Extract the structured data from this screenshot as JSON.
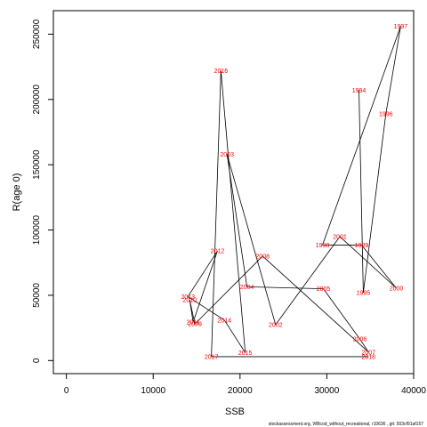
{
  "chart_data": {
    "type": "line",
    "title": "",
    "xlabel": "SSB",
    "ylabel": "R(age 0)",
    "xlim": [
      -1500,
      40000
    ],
    "ylim": [
      -10000,
      268000
    ],
    "xticks": [
      0,
      10000,
      20000,
      30000,
      40000
    ],
    "yticks": [
      0,
      50000,
      100000,
      150000,
      200000,
      250000
    ],
    "points": [
      {
        "year": "1997",
        "x": 38500,
        "y": 256000
      },
      {
        "year": "1998",
        "x": 29500,
        "y": 88500
      },
      {
        "year": "1999",
        "x": 34000,
        "y": 88500
      },
      {
        "year": "2000",
        "x": 38000,
        "y": 55500
      },
      {
        "year": "2001",
        "x": 31500,
        "y": 95000
      },
      {
        "year": "1995",
        "x": 34200,
        "y": 52000
      },
      {
        "year": "1996",
        "x": 36800,
        "y": 189000
      },
      {
        "year": "1994",
        "x": 33700,
        "y": 207000
      },
      {
        "year": "2002",
        "x": 24100,
        "y": 27500
      },
      {
        "year": "2003",
        "x": 18500,
        "y": 158000
      },
      {
        "year": "2004",
        "x": 20800,
        "y": 56500
      },
      {
        "year": "2005",
        "x": 29600,
        "y": 55000
      },
      {
        "year": "2006",
        "x": 33800,
        "y": 16500
      },
      {
        "year": "2007",
        "x": 34800,
        "y": 6500
      },
      {
        "year": "2008",
        "x": 22600,
        "y": 80000
      },
      {
        "year": "2009",
        "x": 14800,
        "y": 28000
      },
      {
        "year": "2010",
        "x": 14200,
        "y": 46500
      },
      {
        "year": "2011",
        "x": 14600,
        "y": 29500
      },
      {
        "year": "2012",
        "x": 17400,
        "y": 84000
      },
      {
        "year": "2013",
        "x": 14000,
        "y": 49000
      },
      {
        "year": "2014",
        "x": 18200,
        "y": 31000
      },
      {
        "year": "2015",
        "x": 20600,
        "y": 6000
      },
      {
        "year": "2016",
        "x": 17800,
        "y": 222000
      },
      {
        "year": "2017",
        "x": 16700,
        "y": 3000
      },
      {
        "year": "2018",
        "x": 34800,
        "y": 3000
      }
    ],
    "path_order": [
      "1994",
      "1995",
      "1996",
      "1997",
      "1998",
      "1999",
      "2000",
      "2001",
      "2002",
      "2003",
      "2004",
      "2005",
      "2006",
      "2007",
      "2008",
      "2009",
      "2010",
      "2011",
      "2012",
      "2013",
      "2014",
      "2015",
      "2016",
      "2017",
      "2018"
    ],
    "label_color": "#ff0000",
    "line_color": "#000000",
    "grid": false,
    "footer": "stockassessment.org, WBcod_without_recreational, r10636 , git: 503cf91af157"
  }
}
